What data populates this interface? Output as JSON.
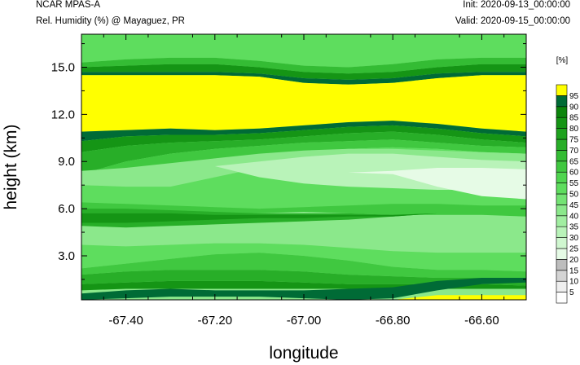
{
  "header": {
    "title": "NCAR MPAS-A",
    "subtitle": "Rel. Humidity (%) @ Mayaguez, PR",
    "init": "Init: 2020-09-13_00:00:00",
    "valid": "Valid: 2020-09-15_00:00:00"
  },
  "chart_data": {
    "type": "heatmap",
    "title": "Rel. Humidity (%) @ Mayaguez, PR",
    "xlabel": "longitude",
    "ylabel": "height (km)",
    "xlim": [
      -67.5,
      -66.5
    ],
    "ylim": [
      0.2,
      17.1
    ],
    "xticks": [
      -67.4,
      -67.2,
      -67.0,
      -66.8,
      -66.6
    ],
    "xtick_labels": [
      "-67.40",
      "-67.20",
      "-67.00",
      "-66.80",
      "-66.60"
    ],
    "yticks": [
      3.0,
      6.0,
      9.0,
      12.0,
      15.0
    ],
    "ytick_labels": [
      "3.0",
      "6.0",
      "9.0",
      "12.0",
      "15.0"
    ],
    "colorbar": {
      "unit_label": "[%]",
      "levels": [
        5,
        10,
        15,
        20,
        25,
        30,
        35,
        40,
        45,
        50,
        55,
        60,
        65,
        70,
        75,
        80,
        85,
        90,
        95
      ],
      "colors": [
        "#ffffff",
        "#efefef",
        "#d4d4d4",
        "#bdbdbd",
        "#e6fbe6",
        "#d0f7d0",
        "#b9f3b9",
        "#a1eea1",
        "#8be88b",
        "#74e374",
        "#5edd5e",
        "#4fd54f",
        "#40c840",
        "#34bc34",
        "#28ae28",
        "#1ea21e",
        "#159515",
        "#0c850c",
        "#006b36",
        "#ffff00"
      ]
    },
    "grid": false,
    "x_samples": [
      -67.5,
      -67.4,
      -67.3,
      -67.2,
      -67.1,
      -67.0,
      -66.9,
      -66.8,
      -66.7,
      -66.6,
      -66.5
    ],
    "bands": [
      {
        "level": 90,
        "lo": [
          17.1,
          17.1,
          17.1,
          17.1,
          17.1,
          17.1,
          17.1,
          17.1,
          17.1,
          17.1,
          17.1
        ],
        "hi": [
          17.1,
          17.1,
          17.1,
          17.1,
          17.1,
          17.1,
          17.1,
          17.1,
          17.1,
          17.1,
          17.1
        ]
      },
      {
        "level": 50,
        "lo": [
          15.3,
          15.5,
          15.6,
          15.6,
          15.4,
          15.1,
          15.0,
          15.2,
          15.5,
          15.6,
          15.6
        ],
        "hi": [
          17.1,
          17.1,
          17.1,
          17.1,
          17.1,
          17.1,
          17.1,
          17.1,
          17.1,
          17.1,
          17.1
        ]
      },
      {
        "level": 65,
        "lo": [
          15.0,
          15.1,
          15.2,
          15.2,
          15.0,
          14.7,
          14.6,
          14.7,
          15.0,
          15.2,
          15.2
        ],
        "hi": [
          15.3,
          15.5,
          15.6,
          15.6,
          15.4,
          15.1,
          15.0,
          15.2,
          15.5,
          15.6,
          15.6
        ]
      },
      {
        "level": 80,
        "lo": [
          14.7,
          14.7,
          14.7,
          14.7,
          14.6,
          14.3,
          14.2,
          14.3,
          14.6,
          14.7,
          14.7
        ],
        "hi": [
          15.0,
          15.1,
          15.2,
          15.2,
          15.0,
          14.7,
          14.6,
          14.7,
          15.0,
          15.2,
          15.2
        ]
      },
      {
        "level": 90,
        "lo": [
          14.5,
          14.5,
          14.5,
          14.5,
          14.4,
          14.0,
          13.9,
          14.0,
          14.3,
          14.5,
          14.5
        ],
        "hi": [
          14.7,
          14.7,
          14.7,
          14.7,
          14.6,
          14.3,
          14.2,
          14.3,
          14.6,
          14.7,
          14.7
        ]
      },
      {
        "level": 95,
        "lo": [
          10.9,
          11.0,
          11.1,
          11.0,
          11.1,
          11.3,
          11.5,
          11.6,
          11.4,
          11.1,
          10.9
        ],
        "hi": [
          14.5,
          14.5,
          14.5,
          14.5,
          14.4,
          14.0,
          13.9,
          14.0,
          14.3,
          14.5,
          14.5
        ]
      },
      {
        "level": 90,
        "lo": [
          10.3,
          10.6,
          10.7,
          10.7,
          10.8,
          11.0,
          11.2,
          11.3,
          11.1,
          10.8,
          10.6
        ],
        "hi": [
          10.9,
          11.0,
          11.1,
          11.0,
          11.1,
          11.3,
          11.5,
          11.6,
          11.4,
          11.1,
          10.9
        ]
      },
      {
        "level": 80,
        "lo": [
          9.6,
          10.0,
          10.2,
          10.3,
          10.4,
          10.6,
          10.8,
          10.9,
          10.7,
          10.4,
          10.2
        ],
        "hi": [
          10.3,
          10.6,
          10.7,
          10.7,
          10.8,
          11.0,
          11.2,
          11.3,
          11.1,
          10.8,
          10.6
        ]
      },
      {
        "level": 70,
        "lo": [
          8.2,
          9.0,
          9.5,
          9.8,
          10.0,
          10.2,
          10.3,
          10.4,
          10.2,
          10.0,
          9.9
        ],
        "hi": [
          9.6,
          10.0,
          10.2,
          10.3,
          10.4,
          10.6,
          10.8,
          10.9,
          10.7,
          10.4,
          10.2
        ]
      },
      {
        "level": 60,
        "lo": [
          7.6,
          8.2,
          8.8,
          9.1,
          9.4,
          9.6,
          9.8,
          9.9,
          9.8,
          9.6,
          9.5
        ],
        "hi": [
          8.2,
          9.0,
          9.5,
          9.8,
          10.0,
          10.2,
          10.3,
          10.4,
          10.2,
          10.0,
          9.9
        ]
      },
      {
        "level": 50,
        "lo": [
          6.2,
          6.2,
          6.1,
          6.0,
          6.0,
          6.0,
          6.0,
          6.0,
          6.0,
          6.0,
          6.0
        ],
        "hi": [
          7.6,
          8.2,
          8.8,
          9.1,
          9.4,
          9.6,
          9.8,
          9.9,
          9.8,
          9.6,
          9.5
        ]
      },
      {
        "level": 40,
        "lo": [
          7.5,
          7.4,
          7.4,
          8.0,
          8.6,
          8.9,
          9.0,
          9.0,
          8.9,
          8.8,
          8.8
        ],
        "hi": [
          8.4,
          8.6,
          8.9,
          9.2,
          9.5,
          9.7,
          9.8,
          9.8,
          9.7,
          9.6,
          9.5
        ]
      },
      {
        "level": 30,
        "lo": [
          8.0,
          8.2,
          8.5,
          8.7,
          8.0,
          7.6,
          7.4,
          7.3,
          7.2,
          7.2,
          7.2
        ],
        "hi": [
          8.0,
          8.2,
          8.5,
          8.7,
          9.0,
          9.3,
          9.5,
          9.5,
          9.3,
          9.1,
          9.0
        ]
      },
      {
        "level": 20,
        "lo": [
          8.0,
          8.0,
          8.0,
          8.0,
          8.0,
          8.0,
          8.3,
          8.2,
          7.4,
          6.8,
          6.6
        ],
        "hi": [
          8.0,
          8.0,
          8.0,
          8.0,
          8.0,
          8.0,
          8.3,
          8.4,
          8.6,
          8.6,
          8.5
        ]
      },
      {
        "level": 60,
        "lo": [
          5.6,
          5.5,
          5.6,
          5.7,
          5.7,
          5.8,
          5.7,
          5.6,
          5.6,
          5.6,
          5.5
        ],
        "hi": [
          6.4,
          6.3,
          6.2,
          6.1,
          6.0,
          6.1,
          6.2,
          6.3,
          6.3,
          6.2,
          6.2
        ]
      },
      {
        "level": 70,
        "lo": [
          4.9,
          4.8,
          4.9,
          5.0,
          5.1,
          5.2,
          5.3,
          5.5,
          5.7,
          5.7,
          5.7
        ],
        "hi": [
          6.0,
          6.0,
          5.9,
          5.8,
          5.7,
          5.7,
          5.7,
          5.6,
          5.7,
          5.7,
          5.7
        ]
      },
      {
        "level": 80,
        "lo": [
          5.1,
          5.1,
          5.2,
          5.3,
          5.4,
          5.4,
          5.5,
          5.5,
          5.7,
          5.7,
          5.7
        ],
        "hi": [
          5.7,
          5.7,
          5.7,
          5.6,
          5.6,
          5.6,
          5.6,
          5.6,
          5.7,
          5.7,
          5.7
        ]
      },
      {
        "level": 50,
        "lo": [
          2.2,
          2.5,
          2.8,
          3.1,
          3.2,
          3.0,
          2.7,
          2.3,
          2.1,
          2.1,
          2.0
        ],
        "hi": [
          3.7,
          3.6,
          3.7,
          3.8,
          3.8,
          3.7,
          3.5,
          3.3,
          3.2,
          3.2,
          3.2
        ]
      },
      {
        "level": 60,
        "lo": [
          1.8,
          2.0,
          2.1,
          2.1,
          2.1,
          2.0,
          1.8,
          1.7,
          1.6,
          1.6,
          1.6
        ],
        "hi": [
          2.2,
          2.5,
          2.8,
          3.1,
          3.2,
          3.0,
          2.7,
          2.3,
          2.1,
          2.1,
          2.0
        ]
      },
      {
        "level": 70,
        "lo": [
          1.2,
          1.3,
          1.4,
          1.4,
          1.4,
          1.3,
          1.2,
          1.2,
          1.2,
          1.2,
          1.1
        ],
        "hi": [
          1.8,
          2.0,
          2.1,
          2.1,
          2.1,
          2.0,
          1.8,
          1.7,
          1.6,
          1.6,
          1.6
        ]
      },
      {
        "level": 80,
        "lo": [
          0.8,
          0.9,
          0.9,
          0.9,
          0.9,
          0.9,
          0.9,
          0.9,
          0.9,
          0.9,
          0.9
        ],
        "hi": [
          1.2,
          1.3,
          1.4,
          1.4,
          1.4,
          1.3,
          1.2,
          1.2,
          1.2,
          1.2,
          1.1
        ]
      },
      {
        "level": 90,
        "lo": [
          0.2,
          0.3,
          0.4,
          0.4,
          0.4,
          0.3,
          0.2,
          0.3,
          0.8,
          1.2,
          1.3
        ],
        "hi": [
          0.6,
          0.8,
          0.9,
          0.8,
          0.8,
          0.8,
          0.9,
          1.0,
          1.4,
          1.6,
          1.6
        ]
      },
      {
        "level": 95,
        "lo": [
          0.2,
          0.2,
          0.2,
          0.2,
          0.2,
          0.2,
          0.2,
          0.2,
          0.2,
          0.2,
          0.2
        ],
        "hi": [
          0.2,
          0.2,
          0.2,
          0.2,
          0.2,
          0.2,
          0.2,
          0.2,
          0.5,
          0.5,
          0.5
        ]
      }
    ]
  }
}
